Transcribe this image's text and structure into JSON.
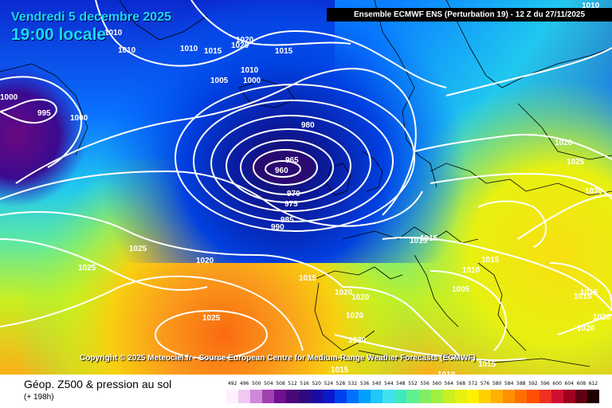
{
  "header": {
    "date": "Vendredi 5 decembre 2025",
    "local_time": "19:00 locale",
    "run_info": "Ensemble ECMWF ENS  (Perturbation 19)  -  12 Z du 27/11/2025"
  },
  "copyright": "Copyright © 2025 Meteociel.fr - Source European Centre for Medium-Range Weather Forecasts (ECMWF)",
  "footer": {
    "parameter": "Géop. Z500 & pression au sol",
    "lead_time": "(+ 198h)"
  },
  "colors": {
    "deep_low": "#1a0a80",
    "blue": "#0050ff",
    "cyan": "#18c8f8",
    "green": "#6ee84e",
    "yellow": "#f4f20a",
    "orange": "#fa9c1c",
    "isobar": "#ffffff",
    "coastline": "#000000"
  },
  "isobar_labels": [
    "1010",
    "1010",
    "1020",
    "1020",
    "1010",
    "1015",
    "1015",
    "1010",
    "1005",
    "1000",
    "1000",
    "995",
    "1000",
    "980",
    "965",
    "960",
    "970",
    "975",
    "985",
    "990",
    "1025",
    "1020",
    "1025",
    "1015",
    "1025",
    "1015",
    "1020",
    "1020",
    "1020",
    "1020",
    "1015",
    "1015",
    "1015",
    "1010",
    "1005",
    "1010",
    "1015",
    "1020",
    "1010",
    "1020",
    "1025",
    "1030",
    "1015",
    "1015",
    "1020"
  ],
  "scale": {
    "unit_labels": [
      "492",
      "496",
      "500",
      "504",
      "508",
      "512",
      "516",
      "520",
      "524",
      "528",
      "532",
      "536",
      "540",
      "544",
      "548",
      "552",
      "556",
      "560",
      "564",
      "568",
      "572",
      "576",
      "580",
      "584",
      "588",
      "592",
      "596",
      "600",
      "604",
      "608",
      "612"
    ],
    "colors": [
      "#fff0ff",
      "#f0c8f0",
      "#d088d8",
      "#a040b0",
      "#701090",
      "#4a0878",
      "#300a80",
      "#1a0aa0",
      "#0a18c8",
      "#0040f0",
      "#0070ff",
      "#00a0ff",
      "#20c8f8",
      "#40e0f0",
      "#40e8c0",
      "#60f090",
      "#80f060",
      "#a0f040",
      "#c8f020",
      "#e8f010",
      "#fff000",
      "#ffd000",
      "#ffb000",
      "#ff9000",
      "#ff7000",
      "#ff5000",
      "#f03020",
      "#d01030",
      "#a00020",
      "#600010",
      "#200000"
    ]
  }
}
